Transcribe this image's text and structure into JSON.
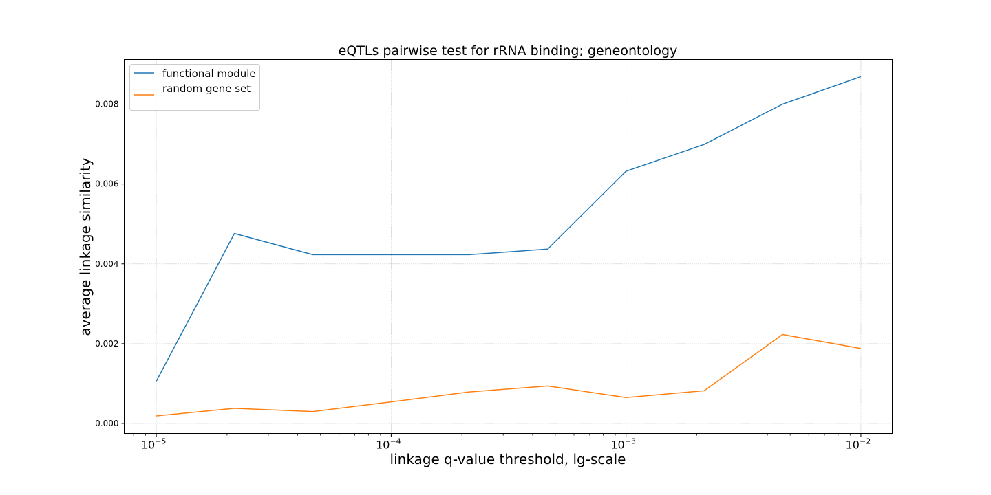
{
  "chart_data": {
    "type": "line",
    "title": "eQTLs pairwise test for rRNA binding; geneontology",
    "xlabel": "linkage q-value threshold, lg-scale",
    "ylabel": "average linkage similarity",
    "x_scale": "log",
    "x": [
      1e-05,
      2.15e-05,
      4.64e-05,
      0.0001,
      0.000215,
      0.000464,
      0.001,
      0.00215,
      0.00464,
      0.01
    ],
    "xlim": [
      7.3e-06,
      0.0136
    ],
    "ylim": [
      -0.00025,
      0.00912
    ],
    "x_ticks": [
      {
        "value": 1e-05,
        "base": "10",
        "exp": "−5"
      },
      {
        "value": 0.0001,
        "base": "10",
        "exp": "−4"
      },
      {
        "value": 0.001,
        "base": "10",
        "exp": "−3"
      },
      {
        "value": 0.01,
        "base": "10",
        "exp": "−2"
      }
    ],
    "y_ticks": [
      {
        "value": 0.0,
        "label": "0.000"
      },
      {
        "value": 0.002,
        "label": "0.002"
      },
      {
        "value": 0.004,
        "label": "0.004"
      },
      {
        "value": 0.006,
        "label": "0.006"
      },
      {
        "value": 0.008,
        "label": "0.008"
      }
    ],
    "grid": true,
    "legend_position": "top-left",
    "series": [
      {
        "name": "functional module",
        "color": "#1f77b4",
        "values": [
          0.00106,
          0.00476,
          0.00423,
          0.00423,
          0.00423,
          0.00437,
          0.00632,
          0.00699,
          0.008,
          0.00869
        ]
      },
      {
        "name": "random gene set",
        "color": "#ff7f0e",
        "values": [
          0.00019,
          0.00038,
          0.0003,
          0.00054,
          0.00079,
          0.00094,
          0.00065,
          0.00082,
          0.00223,
          0.00188
        ]
      }
    ]
  }
}
